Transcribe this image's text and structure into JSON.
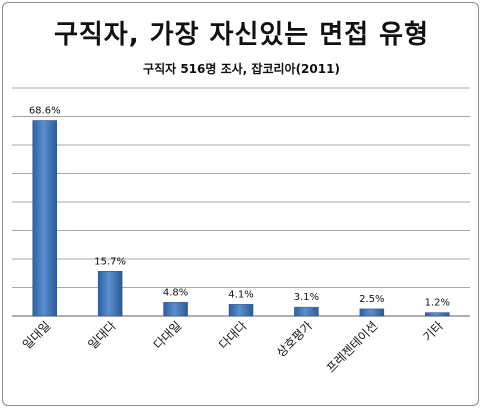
{
  "chart_data": {
    "type": "bar",
    "title": "구직자, 가장 자신있는 면접 유형",
    "subtitle": "구직자 516명 조사, 잡코리아(2011)",
    "categories": [
      "일대일",
      "일대다",
      "다대일",
      "다대다",
      "상호평가",
      "프레젠테이션",
      "기타"
    ],
    "values": [
      68.6,
      15.7,
      4.8,
      4.1,
      3.1,
      2.5,
      1.2
    ],
    "data_labels": [
      "68.6%",
      "15.7%",
      "4.8%",
      "4.1%",
      "3.1%",
      "2.5%",
      "1.2%"
    ],
    "xlabel": "",
    "ylabel": "",
    "ylim": [
      0,
      80
    ],
    "grid": true,
    "legend": "none",
    "bar_color": "#4a7ebb"
  }
}
